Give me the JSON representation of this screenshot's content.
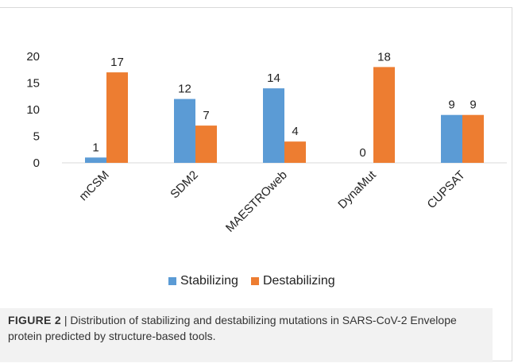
{
  "chart_data": {
    "type": "bar",
    "categories": [
      "mCSM",
      "SDM2",
      "MAESTROweb",
      "DynaMut",
      "CUPSAT"
    ],
    "series": [
      {
        "name": "Stabilizing",
        "values": [
          1,
          12,
          14,
          0,
          9
        ],
        "color": "#5b9bd5"
      },
      {
        "name": "Destabilizing",
        "values": [
          17,
          7,
          4,
          18,
          9
        ],
        "color": "#ed7d31"
      }
    ],
    "yticks": [
      0,
      5,
      10,
      15,
      20
    ],
    "ylim": [
      0,
      20
    ],
    "grid": false,
    "legend_position": "bottom",
    "data_labels": true
  },
  "caption": {
    "label": "FIGURE 2",
    "separator": " | ",
    "text": "Distribution of stabilizing and destabilizing mutations in SARS-CoV-2 Envelope protein predicted by structure-based tools."
  }
}
